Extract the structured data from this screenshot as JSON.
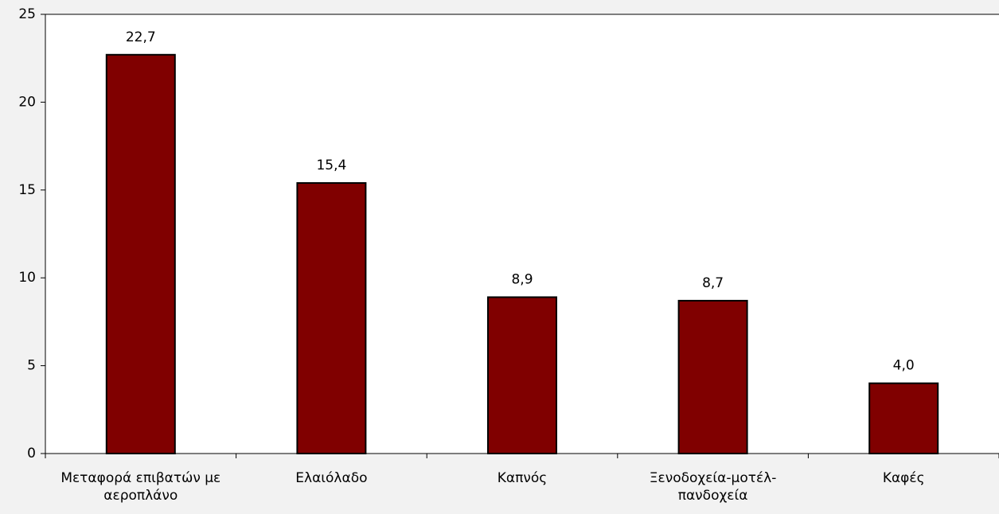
{
  "chart_data": {
    "type": "bar",
    "categories": [
      "Μεταφορά επιβατών με αεροπλάνο",
      "Ελαιόλαδο",
      "Καπνός",
      "Ξενοδοχεία-μοτέλ-πανδοχεία",
      "Καφές"
    ],
    "values": [
      22.7,
      15.4,
      8.9,
      8.7,
      4.0
    ],
    "value_labels": [
      "22,7",
      "15,4",
      "8,9",
      "8,7",
      "4,0"
    ],
    "color": "#800000",
    "ylim": [
      0,
      25
    ],
    "yticks": [
      0,
      5,
      10,
      15,
      20,
      25
    ],
    "grid": false
  }
}
